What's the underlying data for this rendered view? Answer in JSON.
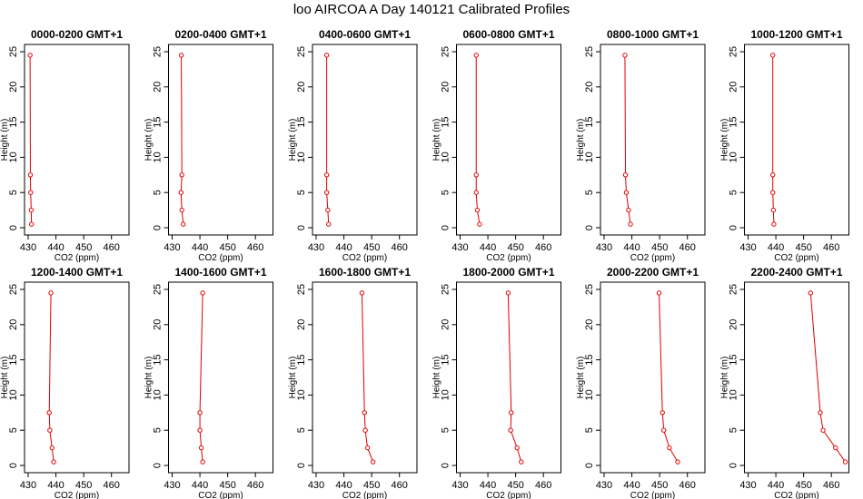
{
  "figure": {
    "title": "loo AIRCOA A  Day 140121  Calibrated Profiles"
  },
  "style": {
    "line_color": "#e00000",
    "axis_color": "#000000"
  },
  "chart_data": [
    {
      "type": "line",
      "title": "0000-0200 GMT+1",
      "xlabel": "CO2 (ppm)",
      "ylabel": "Height (m)",
      "xlim": [
        430,
        465
      ],
      "ylim": [
        0,
        25
      ],
      "xticks": [
        430,
        440,
        450,
        460
      ],
      "yticks": [
        0,
        5,
        10,
        15,
        20,
        25
      ],
      "series": [
        {
          "x": [
            431.2,
            431.1,
            430.9,
            430.8,
            430.7
          ],
          "y": [
            0.5,
            2.5,
            5,
            7.5,
            24.5
          ]
        }
      ]
    },
    {
      "type": "line",
      "title": "0200-0400 GMT+1",
      "xlabel": "CO2 (ppm)",
      "ylabel": "Height (m)",
      "xlim": [
        430,
        465
      ],
      "ylim": [
        0,
        25
      ],
      "xticks": [
        430,
        440,
        450,
        460
      ],
      "yticks": [
        0,
        5,
        10,
        15,
        20,
        25
      ],
      "series": [
        {
          "x": [
            434.0,
            433.5,
            433.2,
            433.5,
            433.3
          ],
          "y": [
            0.5,
            2.5,
            5,
            7.5,
            24.5
          ]
        }
      ]
    },
    {
      "type": "line",
      "title": "0400-0600 GMT+1",
      "xlabel": "CO2 (ppm)",
      "ylabel": "Height (m)",
      "xlim": [
        430,
        465
      ],
      "ylim": [
        0,
        25
      ],
      "xticks": [
        430,
        440,
        450,
        460
      ],
      "yticks": [
        0,
        5,
        10,
        15,
        20,
        25
      ],
      "series": [
        {
          "x": [
            434.5,
            434.2,
            433.8,
            433.8,
            433.8
          ],
          "y": [
            0.5,
            2.5,
            5,
            7.5,
            24.5
          ]
        }
      ]
    },
    {
      "type": "line",
      "title": "0600-0800 GMT+1",
      "xlabel": "CO2 (ppm)",
      "ylabel": "Height (m)",
      "xlim": [
        430,
        465
      ],
      "ylim": [
        0,
        25
      ],
      "xticks": [
        430,
        440,
        450,
        460
      ],
      "yticks": [
        0,
        5,
        10,
        15,
        20,
        25
      ],
      "series": [
        {
          "x": [
            437.0,
            436.2,
            435.8,
            435.8,
            435.8
          ],
          "y": [
            0.5,
            2.5,
            5,
            7.5,
            24.5
          ]
        }
      ]
    },
    {
      "type": "line",
      "title": "0800-1000 GMT+1",
      "xlabel": "CO2 (ppm)",
      "ylabel": "Height (m)",
      "xlim": [
        430,
        465
      ],
      "ylim": [
        0,
        25
      ],
      "xticks": [
        430,
        440,
        450,
        460
      ],
      "yticks": [
        0,
        5,
        10,
        15,
        20,
        25
      ],
      "series": [
        {
          "x": [
            439.5,
            438.8,
            438.0,
            437.7,
            437.5
          ],
          "y": [
            0.5,
            2.5,
            5,
            7.5,
            24.5
          ]
        }
      ]
    },
    {
      "type": "line",
      "title": "1000-1200 GMT+1",
      "xlabel": "CO2 (ppm)",
      "ylabel": "Height (m)",
      "xlim": [
        430,
        465
      ],
      "ylim": [
        0,
        25
      ],
      "xticks": [
        430,
        440,
        450,
        460
      ],
      "yticks": [
        0,
        5,
        10,
        15,
        20,
        25
      ],
      "series": [
        {
          "x": [
            439.3,
            439.1,
            438.9,
            438.9,
            438.9
          ],
          "y": [
            0.5,
            2.5,
            5,
            7.5,
            24.5
          ]
        }
      ]
    },
    {
      "type": "line",
      "title": "1200-1400 GMT+1",
      "xlabel": "CO2 (ppm)",
      "ylabel": "Height (m)",
      "xlim": [
        430,
        465
      ],
      "ylim": [
        0,
        25
      ],
      "xticks": [
        430,
        440,
        450,
        460
      ],
      "yticks": [
        0,
        5,
        10,
        15,
        20,
        25
      ],
      "series": [
        {
          "x": [
            439.2,
            438.6,
            437.8,
            437.6,
            438.2
          ],
          "y": [
            0.5,
            2.5,
            5,
            7.5,
            24.5
          ]
        }
      ]
    },
    {
      "type": "line",
      "title": "1400-1600 GMT+1",
      "xlabel": "CO2 (ppm)",
      "ylabel": "Height (m)",
      "xlim": [
        430,
        465
      ],
      "ylim": [
        0,
        25
      ],
      "xticks": [
        430,
        440,
        450,
        460
      ],
      "yticks": [
        0,
        5,
        10,
        15,
        20,
        25
      ],
      "series": [
        {
          "x": [
            441.0,
            440.5,
            440.0,
            440.0,
            441.0
          ],
          "y": [
            0.5,
            2.5,
            5,
            7.5,
            24.5
          ]
        }
      ]
    },
    {
      "type": "line",
      "title": "1600-1800 GMT+1",
      "xlabel": "CO2 (ppm)",
      "ylabel": "Height (m)",
      "xlim": [
        430,
        465
      ],
      "ylim": [
        0,
        25
      ],
      "xticks": [
        430,
        440,
        450,
        460
      ],
      "yticks": [
        0,
        5,
        10,
        15,
        20,
        25
      ],
      "series": [
        {
          "x": [
            450.5,
            448.5,
            447.7,
            447.4,
            446.5
          ],
          "y": [
            0.5,
            2.5,
            5,
            7.5,
            24.5
          ]
        }
      ]
    },
    {
      "type": "line",
      "title": "1800-2000 GMT+1",
      "xlabel": "CO2 (ppm)",
      "ylabel": "Height (m)",
      "xlim": [
        430,
        465
      ],
      "ylim": [
        0,
        25
      ],
      "xticks": [
        430,
        440,
        450,
        460
      ],
      "yticks": [
        0,
        5,
        10,
        15,
        20,
        25
      ],
      "series": [
        {
          "x": [
            452.0,
            450.5,
            448.2,
            448.4,
            447.3
          ],
          "y": [
            0.5,
            2.5,
            5,
            7.5,
            24.5
          ]
        }
      ]
    },
    {
      "type": "line",
      "title": "2000-2200 GMT+1",
      "xlabel": "CO2 (ppm)",
      "ylabel": "Height (m)",
      "xlim": [
        430,
        465
      ],
      "ylim": [
        0,
        25
      ],
      "xticks": [
        430,
        440,
        450,
        460
      ],
      "yticks": [
        0,
        5,
        10,
        15,
        20,
        25
      ],
      "series": [
        {
          "x": [
            456.5,
            453.5,
            451.5,
            451.0,
            449.8
          ],
          "y": [
            0.5,
            2.5,
            5,
            7.5,
            24.5
          ]
        }
      ]
    },
    {
      "type": "line",
      "title": "2200-2400 GMT+1",
      "xlabel": "CO2 (ppm)",
      "ylabel": "Height (m)",
      "xlim": [
        430,
        465
      ],
      "ylim": [
        0,
        25
      ],
      "xticks": [
        430,
        440,
        450,
        460
      ],
      "yticks": [
        0,
        5,
        10,
        15,
        20,
        25
      ],
      "series": [
        {
          "x": [
            465.0,
            461.5,
            457.0,
            456.0,
            452.5
          ],
          "y": [
            0.5,
            2.5,
            5,
            7.5,
            24.5
          ]
        }
      ]
    }
  ]
}
